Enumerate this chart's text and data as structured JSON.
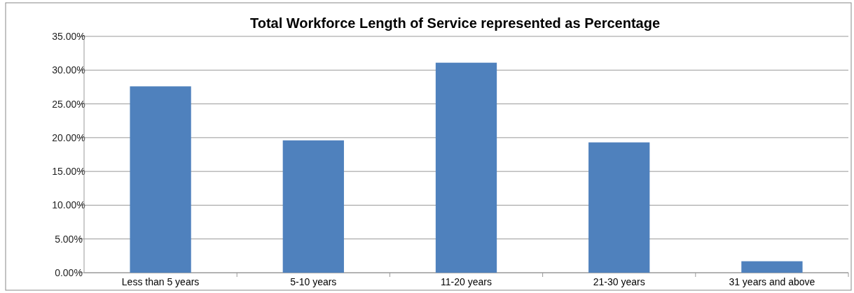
{
  "chart_data": {
    "type": "bar",
    "title": "Total Workforce Length of Service represented as Percentage",
    "categories": [
      "Less than 5 years",
      "5-10 years",
      "11-20 years",
      "21-30 years",
      "31 years and above"
    ],
    "values": [
      27.6,
      19.6,
      31.1,
      19.3,
      1.7
    ],
    "color": "#4f81bd",
    "ylim": [
      0,
      35
    ],
    "yticks": [
      {
        "value": 0,
        "label": "0.00%"
      },
      {
        "value": 5,
        "label": "5.00%"
      },
      {
        "value": 10,
        "label": "10.00%"
      },
      {
        "value": 15,
        "label": "15.00%"
      },
      {
        "value": 20,
        "label": "20.00%"
      },
      {
        "value": 25,
        "label": "25.00%"
      },
      {
        "value": 30,
        "label": "30.00%"
      },
      {
        "value": 35,
        "label": "35.00%"
      }
    ],
    "grid": "y"
  }
}
